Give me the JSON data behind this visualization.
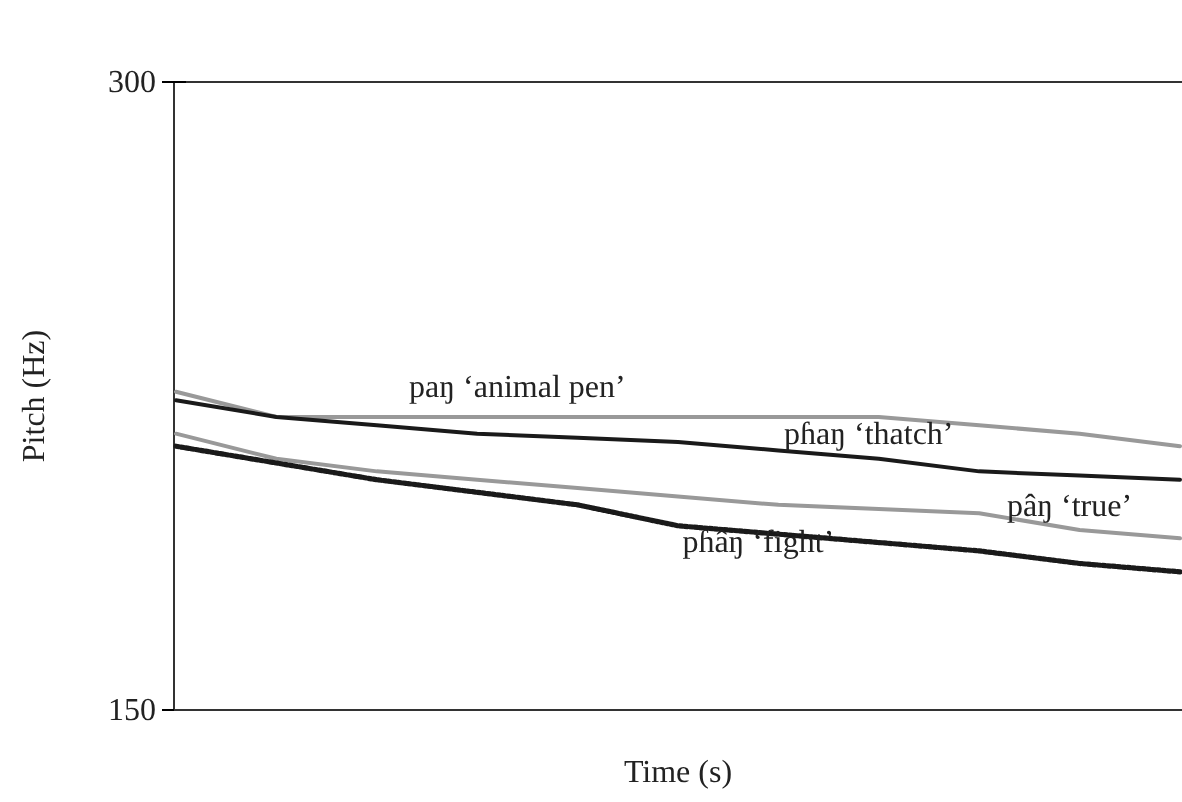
{
  "chart_data": {
    "type": "line",
    "xlabel": "Time (s)",
    "ylabel": "Pitch (Hz)",
    "categories": [
      null,
      null,
      null,
      null,
      null,
      null,
      null,
      null,
      null,
      null,
      null
    ],
    "ylim": [
      150,
      300
    ],
    "yticks": [
      150,
      300
    ],
    "grid": "y",
    "marker": "none",
    "series": [
      {
        "name": "paŋ ‘animal pen’",
        "color": "#999999",
        "line_style": "solid",
        "values": [
          226,
          220,
          220,
          220,
          220,
          220,
          220,
          220,
          218,
          216,
          213
        ]
      },
      {
        "name": "pɦaŋ ‘thatch’",
        "color": "#1a1a1a",
        "line_style": "solid",
        "values": [
          224,
          220,
          218,
          216,
          215,
          214,
          212,
          210,
          207,
          206,
          205
        ]
      },
      {
        "name": "pâŋ ‘true’",
        "color": "#999999",
        "line_style": "solid",
        "values": [
          216,
          210,
          207,
          205,
          203,
          201,
          199,
          198,
          197,
          193,
          191
        ]
      },
      {
        "name": "pɦâŋ ‘fight’",
        "color": "#1a1a1a",
        "line_style": "dotted",
        "values": [
          213,
          209,
          205,
          202,
          199,
          194,
          192,
          190,
          188,
          185,
          183
        ]
      }
    ]
  }
}
